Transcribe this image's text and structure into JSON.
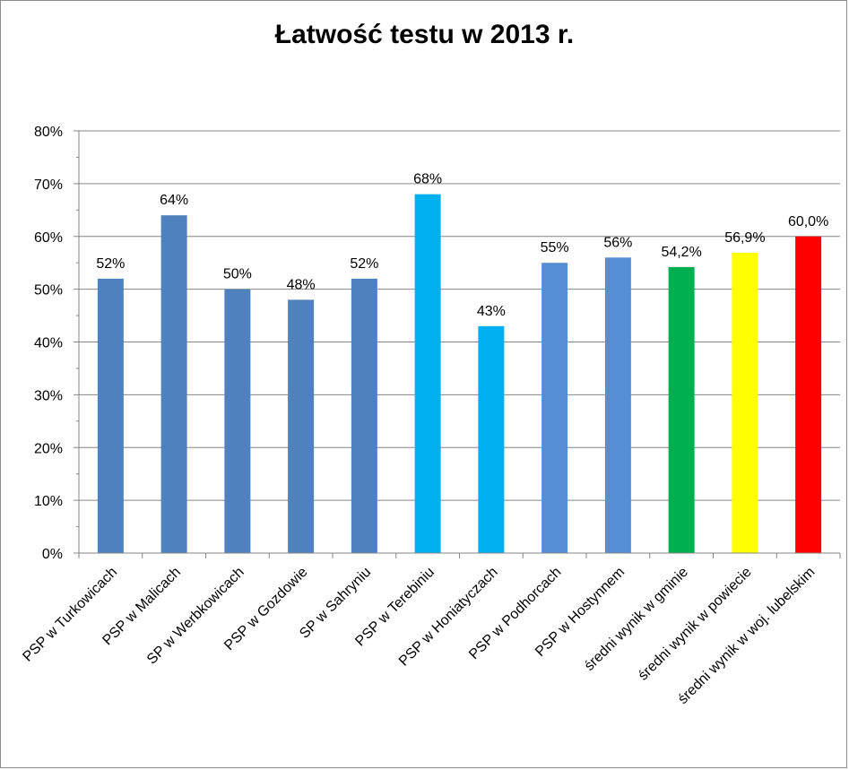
{
  "chart_data": {
    "type": "bar",
    "title": "Łatwość testu w 2013 r.",
    "xlabel": "",
    "ylabel": "",
    "ylim": [
      0,
      0.8
    ],
    "y_ticks": [
      "0%",
      "10%",
      "20%",
      "30%",
      "40%",
      "50%",
      "60%",
      "70%",
      "80%"
    ],
    "grid": true,
    "legend": "none",
    "categories": [
      "PSP w Turkowicach",
      "PSP w Malicach",
      "SP w Werbkowicach",
      "PSP w Gozdowie",
      "SP w Sahryniu",
      "PSP w Terebiniu",
      "PSP w Honiatyczach",
      "PSP w Podhorcach",
      "PSP w Hostynnem",
      "średni wynik w gminie",
      "średni wynik w powiecie",
      "średni wynik w woj. lubelskim"
    ],
    "values": [
      0.52,
      0.64,
      0.5,
      0.48,
      0.52,
      0.68,
      0.43,
      0.55,
      0.56,
      0.542,
      0.569,
      0.6
    ],
    "data_labels": [
      "52%",
      "64%",
      "50%",
      "48%",
      "52%",
      "68%",
      "43%",
      "55%",
      "56%",
      "54,2%",
      "56,9%",
      "60,0%"
    ],
    "colors": [
      "#4f81bd",
      "#4f81bd",
      "#4f81bd",
      "#4f81bd",
      "#4f81bd",
      "#00b0f0",
      "#00b0f0",
      "#558ed5",
      "#558ed5",
      "#00b050",
      "#ffff00",
      "#ff0000"
    ]
  }
}
